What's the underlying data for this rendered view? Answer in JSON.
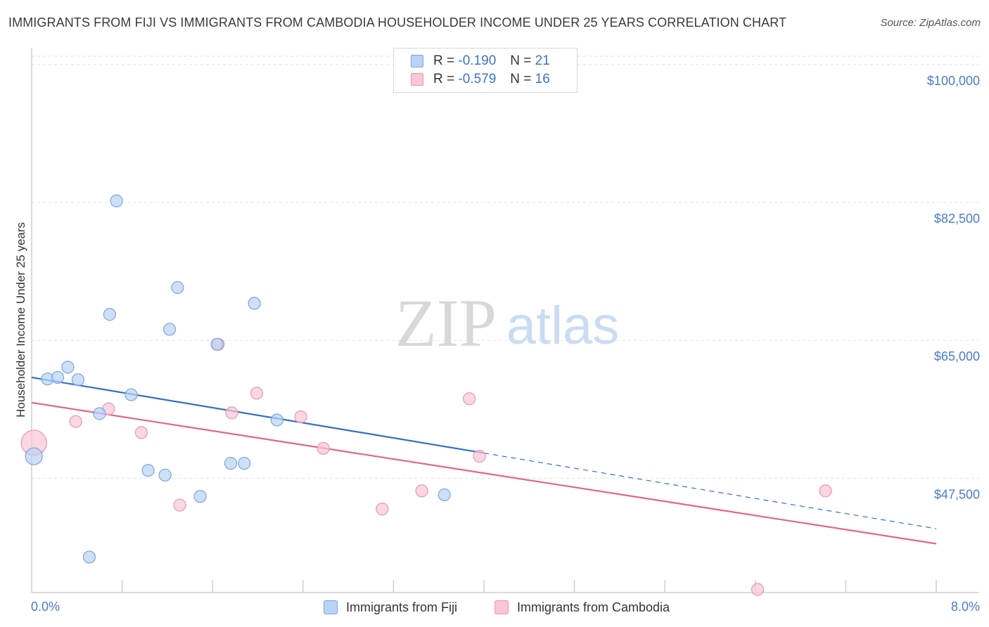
{
  "header": {
    "title": "IMMIGRANTS FROM FIJI VS IMMIGRANTS FROM CAMBODIA HOUSEHOLDER INCOME UNDER 25 YEARS CORRELATION CHART",
    "source": "Source: ZipAtlas.com"
  },
  "watermark": {
    "zip": "ZIP",
    "atlas": "atlas"
  },
  "legend": {
    "fiji": {
      "r_label": "R =",
      "r_value": "-0.190",
      "n_label": "N =",
      "n_value": "21"
    },
    "cambodia": {
      "r_label": "R =",
      "r_value": "-0.579",
      "n_label": "N =",
      "n_value": "16"
    }
  },
  "bottom_legend": {
    "fiji": "Immigrants from Fiji",
    "cambodia": "Immigrants from Cambodia"
  },
  "colors": {
    "fiji_fill": "#b8d3f3",
    "fiji_stroke": "#7aa6de",
    "fiji_line": "#2f6fcf",
    "cambodia_fill": "#f9c6d5",
    "cambodia_stroke": "#eb94b0",
    "cambodia_line": "#e2648f",
    "grid": "#e2e2e2",
    "tick_text": "#4a7cc9"
  },
  "chart_data": {
    "type": "scatter",
    "title": "IMMIGRANTS FROM FIJI VS IMMIGRANTS FROM CAMBODIA HOUSEHOLDER INCOME UNDER 25 YEARS CORRELATION CHART",
    "xlabel": "",
    "ylabel": "Householder Income Under 25 years",
    "xlim": [
      0,
      8.0
    ],
    "ylim": [
      33000,
      101500
    ],
    "x_tick_labels": [
      "0.0%",
      "8.0%"
    ],
    "y_ticks": [
      47500,
      65000,
      82500,
      100000
    ],
    "y_tick_labels": [
      "$47,500",
      "$65,000",
      "$82,500",
      "$100,000"
    ],
    "legend_position": "top-center",
    "series": [
      {
        "name": "Immigrants from Fiji",
        "points": [
          {
            "x": 0.02,
            "y": 50300,
            "big": true
          },
          {
            "x": 0.14,
            "y": 60100
          },
          {
            "x": 0.23,
            "y": 60300
          },
          {
            "x": 0.32,
            "y": 61600
          },
          {
            "x": 0.41,
            "y": 60000
          },
          {
            "x": 0.51,
            "y": 37500
          },
          {
            "x": 0.6,
            "y": 55700
          },
          {
            "x": 0.69,
            "y": 68300
          },
          {
            "x": 0.75,
            "y": 82700
          },
          {
            "x": 0.88,
            "y": 58100
          },
          {
            "x": 1.03,
            "y": 48500
          },
          {
            "x": 1.18,
            "y": 47900
          },
          {
            "x": 1.22,
            "y": 66400
          },
          {
            "x": 1.29,
            "y": 71700
          },
          {
            "x": 1.49,
            "y": 45200
          },
          {
            "x": 1.64,
            "y": 64500
          },
          {
            "x": 1.76,
            "y": 49400
          },
          {
            "x": 1.88,
            "y": 49400
          },
          {
            "x": 1.97,
            "y": 69700
          },
          {
            "x": 2.17,
            "y": 54900
          },
          {
            "x": 3.65,
            "y": 45400
          }
        ],
        "trend": {
          "x0": 0.0,
          "y0": 60300,
          "x1": 4.0,
          "y1": 50700,
          "dash_to_x": 8.0,
          "dash_to_y": 41100
        }
      },
      {
        "name": "Immigrants from Cambodia",
        "points": [
          {
            "x": 0.02,
            "y": 52000,
            "big": true
          },
          {
            "x": 0.39,
            "y": 54700
          },
          {
            "x": 0.68,
            "y": 56300
          },
          {
            "x": 0.97,
            "y": 53300
          },
          {
            "x": 1.31,
            "y": 44100
          },
          {
            "x": 1.65,
            "y": 64500
          },
          {
            "x": 1.77,
            "y": 55800
          },
          {
            "x": 1.99,
            "y": 58300
          },
          {
            "x": 2.38,
            "y": 55300
          },
          {
            "x": 2.58,
            "y": 51300
          },
          {
            "x": 3.1,
            "y": 43600
          },
          {
            "x": 3.45,
            "y": 45900
          },
          {
            "x": 3.87,
            "y": 57600
          },
          {
            "x": 3.96,
            "y": 50300
          },
          {
            "x": 6.42,
            "y": 33400
          },
          {
            "x": 7.02,
            "y": 45900
          }
        ],
        "trend": {
          "x0": 0.0,
          "y0": 57100,
          "x1": 8.0,
          "y1": 39200
        }
      }
    ]
  }
}
